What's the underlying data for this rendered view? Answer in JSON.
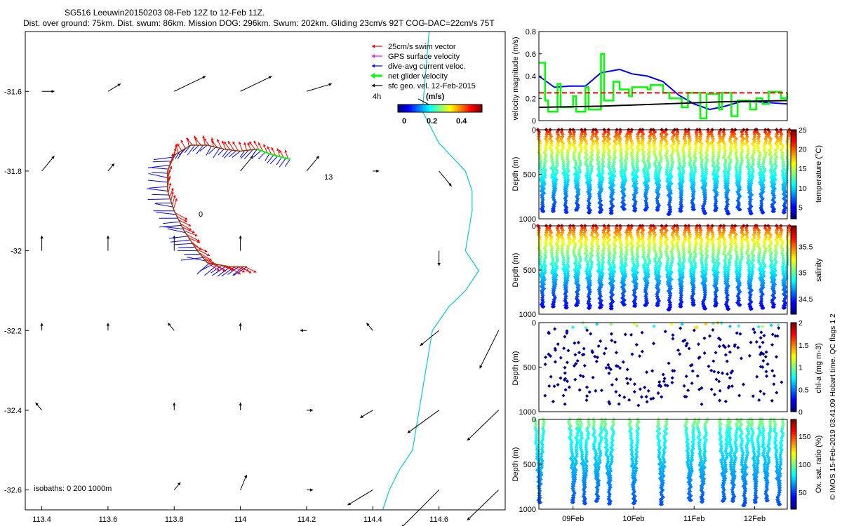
{
  "header": {
    "line1": "SG516 Leeuwin20150203 08-Feb 12Z to 12-Feb 11Z.",
    "line2": "Dist. over ground: 75km. Dist. swum: 86km. Mission DOG: 296km. Swum: 202km. Gliding 23cm/s 92T COG-DAC=22cm/s 75T"
  },
  "colors": {
    "swim": "#ff0000",
    "gps": "#ff00ff",
    "dac": "#0000ff",
    "net": "#00ff00",
    "coast": "#00ccdd",
    "threshold": "#ff0000"
  },
  "chart_data": [
    {
      "type": "map",
      "name": "trajectory-map",
      "xlim": [
        113.35,
        114.8
      ],
      "ylim": [
        -32.65,
        -31.45
      ],
      "x_ticks": [
        113.4,
        113.6,
        113.8,
        114,
        114.2,
        114.4,
        114.6
      ],
      "x_tick_labels": [
        "113.4",
        "113.6",
        "113.8",
        "114",
        "114.2",
        "114.4",
        "114.6"
      ],
      "y_ticks": [
        -31.6,
        -31.8,
        -32,
        -32.2,
        -32.4,
        -32.6
      ],
      "y_tick_labels": [
        "-31.6",
        "-31.8",
        "-32",
        "-32.2",
        "-32.4",
        "-32.6"
      ],
      "legend": {
        "placement": "top-right",
        "entries": [
          "25cm/s swim vector",
          "GPS surface velocity",
          "dive-avg current veloc.",
          "net glider velocity",
          "sfc geo. vel. 12-Feb-2015"
        ]
      },
      "colorbar": {
        "label": "(m/s)",
        "tick_labels": [
          "0",
          "0.2",
          "0.4"
        ],
        "range": [
          0,
          0.5
        ]
      },
      "annotations": {
        "hour_label": "4h",
        "bottom_label": "isobaths: 0   200  1000m",
        "number_label": "13",
        "start_label": "0"
      },
      "track": [
        [
          114.15,
          -31.77
        ],
        [
          114.1,
          -31.76
        ],
        [
          114.05,
          -31.745
        ],
        [
          114.0,
          -31.75
        ],
        [
          113.95,
          -31.745
        ],
        [
          113.9,
          -31.735
        ],
        [
          113.85,
          -31.735
        ],
        [
          113.8,
          -31.76
        ],
        [
          113.78,
          -31.8
        ],
        [
          113.78,
          -31.85
        ],
        [
          113.8,
          -31.9
        ],
        [
          113.83,
          -31.95
        ],
        [
          113.87,
          -32.0
        ],
        [
          113.9,
          -32.03
        ],
        [
          113.97,
          -32.04
        ],
        [
          114.02,
          -32.04
        ]
      ],
      "geo_vectors": [
        [
          113.4,
          -31.6,
          0.02,
          0.0
        ],
        [
          113.6,
          -31.6,
          0.02,
          0.01
        ],
        [
          113.8,
          -31.6,
          0.05,
          0.02
        ],
        [
          114.0,
          -31.6,
          0.05,
          0.02
        ],
        [
          114.2,
          -31.6,
          0.04,
          0.01
        ],
        [
          113.4,
          -31.8,
          0.02,
          0.02
        ],
        [
          113.6,
          -31.8,
          0.01,
          0.01
        ],
        [
          114.0,
          -31.8,
          0.02,
          0.02
        ],
        [
          114.2,
          -31.8,
          0.02,
          0.02
        ],
        [
          114.4,
          -31.8,
          0.01,
          0.0
        ],
        [
          114.6,
          -31.8,
          0.02,
          -0.02
        ],
        [
          113.4,
          -32.0,
          0.0,
          0.02
        ],
        [
          113.6,
          -32.0,
          0.0,
          0.02
        ],
        [
          113.8,
          -32.0,
          0.0,
          0.02
        ],
        [
          114.0,
          -32.0,
          0.0,
          0.02
        ],
        [
          114.4,
          -32.0,
          0.0,
          0.0
        ],
        [
          114.6,
          -32.0,
          0.0,
          -0.02
        ],
        [
          113.4,
          -32.2,
          0.0,
          0.01
        ],
        [
          113.6,
          -32.2,
          0.0,
          0.01
        ],
        [
          113.8,
          -32.2,
          -0.01,
          0.01
        ],
        [
          114.0,
          -32.2,
          0.0,
          0.01
        ],
        [
          114.2,
          -32.2,
          -0.01,
          0.0
        ],
        [
          114.4,
          -32.2,
          -0.01,
          0.01
        ],
        [
          114.6,
          -32.2,
          -0.03,
          -0.02
        ],
        [
          114.78,
          -32.2,
          -0.03,
          -0.05
        ],
        [
          113.4,
          -32.4,
          -0.01,
          0.01
        ],
        [
          113.6,
          -32.4,
          0.0,
          0.0
        ],
        [
          113.8,
          -32.4,
          0.0,
          0.01
        ],
        [
          114.0,
          -32.4,
          0.0,
          0.01
        ],
        [
          114.2,
          -32.4,
          0.01,
          0.0
        ],
        [
          114.4,
          -32.4,
          -0.02,
          -0.01
        ],
        [
          114.6,
          -32.4,
          -0.05,
          -0.03
        ],
        [
          114.78,
          -32.4,
          -0.05,
          -0.04
        ],
        [
          113.6,
          -32.6,
          0.0,
          0.0
        ],
        [
          113.8,
          -32.6,
          0.01,
          0.01
        ],
        [
          114.0,
          -32.6,
          0.01,
          0.02
        ],
        [
          114.2,
          -32.6,
          0.01,
          0.0
        ],
        [
          114.4,
          -32.6,
          -0.04,
          -0.02
        ],
        [
          114.6,
          -32.6,
          -0.06,
          -0.05
        ],
        [
          114.78,
          -32.6,
          -0.05,
          -0.04
        ]
      ],
      "coastline": [
        [
          114.57,
          -31.45
        ],
        [
          114.56,
          -31.55
        ],
        [
          114.55,
          -31.65
        ],
        [
          114.6,
          -31.73
        ],
        [
          114.68,
          -31.8
        ],
        [
          114.7,
          -31.85
        ],
        [
          114.7,
          -31.9
        ],
        [
          114.68,
          -32.0
        ],
        [
          114.72,
          -32.05
        ],
        [
          114.68,
          -32.1
        ],
        [
          114.63,
          -32.14
        ],
        [
          114.58,
          -32.2
        ],
        [
          114.56,
          -32.3
        ],
        [
          114.54,
          -32.4
        ],
        [
          114.52,
          -32.5
        ],
        [
          114.48,
          -32.55
        ],
        [
          114.45,
          -32.6
        ],
        [
          114.43,
          -32.65
        ]
      ]
    },
    {
      "type": "line",
      "name": "velocity-magnitude",
      "ylabel": "velocity magnitude (m/s)",
      "xlim": [
        0,
        4
      ],
      "ylim": [
        0,
        0.8
      ],
      "y_ticks": [
        0,
        0.2,
        0.4,
        0.6,
        0.8
      ],
      "y_tick_labels": [
        "0",
        "0.2",
        "0.4",
        "0.6",
        "0.8"
      ],
      "series": [
        {
          "name": "dive-avg current",
          "x": [
            0,
            0.25,
            0.5,
            0.75,
            1.0,
            1.3,
            1.5,
            1.75,
            2.0,
            2.25,
            2.5,
            2.75,
            3.0,
            3.25,
            3.5,
            3.75,
            4.0
          ],
          "values": [
            0.4,
            0.3,
            0.31,
            0.31,
            0.43,
            0.46,
            0.42,
            0.4,
            0.35,
            0.23,
            0.15,
            0.1,
            0.13,
            0.17,
            0.17,
            0.16,
            0.15
          ]
        },
        {
          "name": "net glider",
          "x": [
            0,
            0.1,
            0.15,
            0.3,
            0.35,
            0.55,
            0.6,
            0.75,
            0.8,
            1.0,
            1.05,
            1.2,
            1.3,
            1.45,
            1.5,
            1.75,
            1.8,
            2.0,
            2.1,
            2.3,
            2.4,
            2.6,
            2.7,
            2.9,
            2.95,
            3.1,
            3.2,
            3.4,
            3.5,
            3.6,
            3.7,
            3.9,
            4.0
          ],
          "values": [
            0.52,
            0.18,
            0.08,
            0.33,
            0.12,
            0.22,
            0.08,
            0.3,
            0.1,
            0.6,
            0.18,
            0.35,
            0.28,
            0.22,
            0.3,
            0.28,
            0.32,
            0.25,
            0.2,
            0.12,
            0.25,
            0.02,
            0.24,
            0.1,
            0.25,
            0.04,
            0.18,
            0.1,
            0.2,
            0.15,
            0.26,
            0.2,
            0.25
          ]
        },
        {
          "name": "surface geostrophic",
          "x": [
            0,
            1,
            2,
            3,
            4
          ],
          "values": [
            0.12,
            0.13,
            0.15,
            0.17,
            0.18
          ]
        },
        {
          "name": "25cm/s reference",
          "x": [
            0,
            4
          ],
          "values": [
            0.25,
            0.25
          ]
        }
      ]
    },
    {
      "type": "scatter",
      "name": "temperature-section",
      "ylabel": "Depth (m)",
      "colorbar_label": "temperature (°C)",
      "ylim": [
        1000,
        0
      ],
      "y_tick_labels": [
        "0",
        "500",
        "1000"
      ],
      "c_range": [
        2,
        25
      ],
      "c_tick_labels": [
        "5",
        "10",
        "15",
        "20",
        "25"
      ],
      "dives": 22,
      "max_depth": 950
    },
    {
      "type": "scatter",
      "name": "salinity-section",
      "ylabel": "Depth (m)",
      "colorbar_label": "salinity",
      "ylim": [
        1000,
        0
      ],
      "y_tick_labels": [
        "0",
        "500",
        "1000"
      ],
      "c_range": [
        34.2,
        35.9
      ],
      "c_tick_labels": [
        "34.5",
        "35",
        "35.5"
      ],
      "dives": 22,
      "max_depth": 950
    },
    {
      "type": "scatter",
      "name": "chlorophyll-section",
      "ylabel": "Depth (m)",
      "colorbar_label": "chl-a (mg m-3)",
      "ylim": [
        1000,
        0
      ],
      "y_tick_labels": [
        "0",
        "500",
        "1000"
      ],
      "c_range": [
        0,
        2
      ],
      "c_tick_labels": [
        "0",
        "0.5",
        "1",
        "1.5",
        "2"
      ],
      "points": 260
    },
    {
      "type": "scatter",
      "name": "oxygen-section",
      "ylabel": "Depth (m)",
      "colorbar_label": "Ox. sat. ratio (%)",
      "ylim": [
        1000,
        0
      ],
      "y_tick_labels": [
        "0",
        "500",
        "1000"
      ],
      "c_range": [
        20,
        180
      ],
      "c_tick_labels": [
        "50",
        "100",
        "150"
      ],
      "dive_positions": [
        0.0,
        0.55,
        0.72,
        0.93,
        1.12,
        1.52,
        1.97,
        2.42,
        2.62,
        2.97,
        3.12,
        3.3,
        3.48,
        3.65,
        3.85
      ],
      "x_tick_labels": [
        "09Feb",
        "10Feb",
        "11Feb",
        "12Feb"
      ]
    }
  ],
  "side_note": "© IMOS 15-Feb-2019 03:41:09 Hobart time. QC flags 1  2"
}
